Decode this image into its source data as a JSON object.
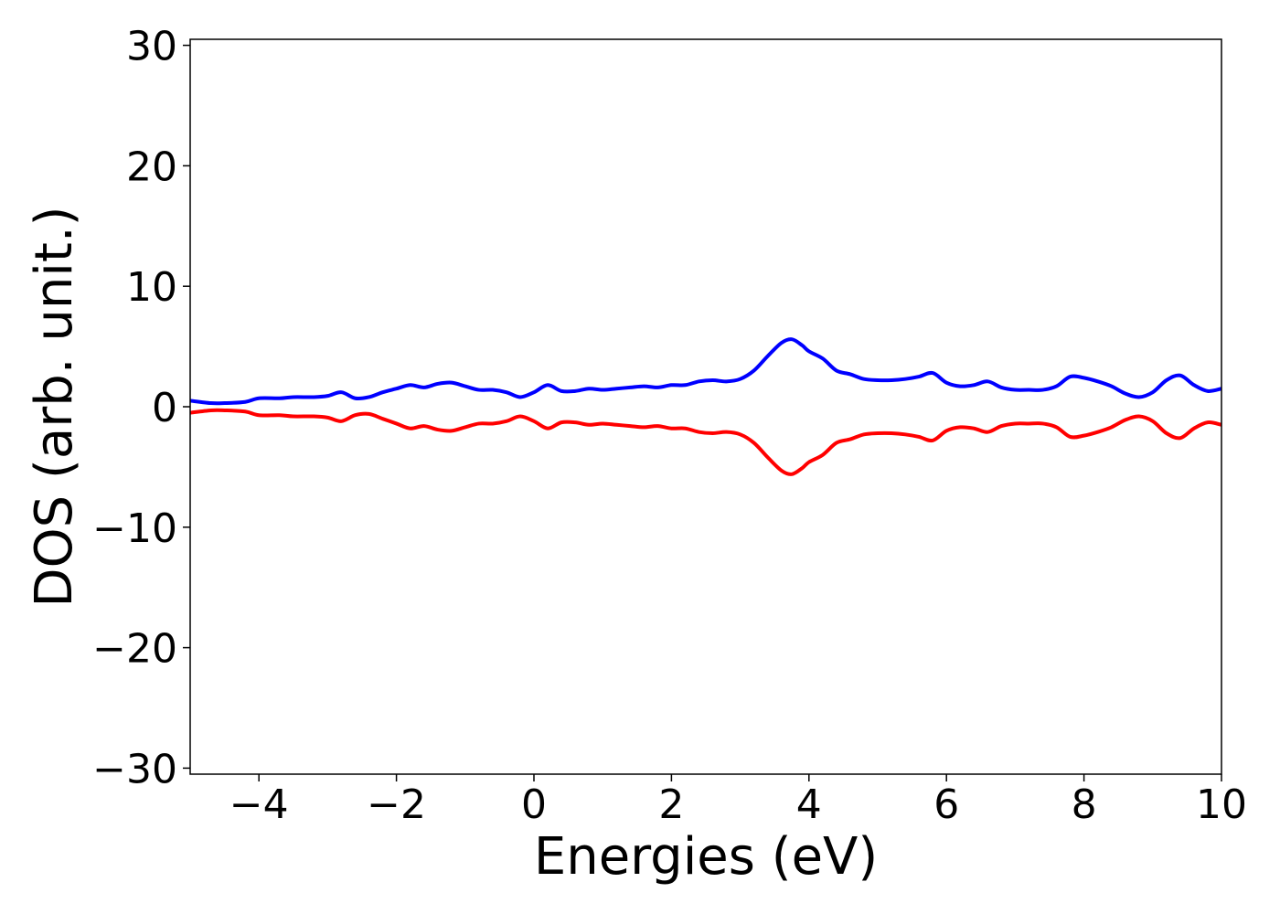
{
  "chart_data": {
    "type": "line",
    "title": "",
    "xlabel": "Energies (eV)",
    "ylabel": "DOS (arb. unit.)",
    "xlim": [
      -5,
      10
    ],
    "ylim": [
      -30.5,
      30.5
    ],
    "xticks": [
      -4,
      -2,
      0,
      2,
      4,
      6,
      8,
      10
    ],
    "xtick_labels": [
      "−4",
      "−2",
      "0",
      "2",
      "4",
      "6",
      "8",
      "10"
    ],
    "yticks": [
      -30,
      -20,
      -10,
      0,
      10,
      20,
      30
    ],
    "ytick_labels": [
      "−30",
      "−20",
      "−10",
      "0",
      "10",
      "20",
      "30"
    ],
    "grid": false,
    "series": [
      {
        "color": "#0000ff",
        "x": [
          -5.0,
          -4.7,
          -4.5,
          -4.2,
          -4.0,
          -3.7,
          -3.5,
          -3.2,
          -3.0,
          -2.8,
          -2.6,
          -2.4,
          -2.2,
          -2.0,
          -1.8,
          -1.6,
          -1.4,
          -1.2,
          -1.0,
          -0.8,
          -0.6,
          -0.4,
          -0.2,
          0.0,
          0.2,
          0.4,
          0.6,
          0.8,
          1.0,
          1.2,
          1.4,
          1.6,
          1.8,
          2.0,
          2.2,
          2.4,
          2.6,
          2.8,
          3.0,
          3.2,
          3.4,
          3.6,
          3.75,
          3.9,
          4.0,
          4.2,
          4.4,
          4.6,
          4.8,
          5.0,
          5.2,
          5.4,
          5.6,
          5.8,
          6.0,
          6.2,
          6.4,
          6.6,
          6.8,
          7.0,
          7.2,
          7.4,
          7.6,
          7.8,
          8.0,
          8.2,
          8.4,
          8.6,
          8.8,
          9.0,
          9.2,
          9.4,
          9.6,
          9.8,
          10.0
        ],
        "y": [
          0.5,
          0.3,
          0.3,
          0.4,
          0.7,
          0.7,
          0.8,
          0.8,
          0.9,
          1.2,
          0.7,
          0.8,
          1.2,
          1.5,
          1.8,
          1.6,
          1.9,
          2.0,
          1.7,
          1.4,
          1.4,
          1.2,
          0.8,
          1.2,
          1.8,
          1.3,
          1.3,
          1.5,
          1.4,
          1.5,
          1.6,
          1.7,
          1.6,
          1.8,
          1.8,
          2.1,
          2.2,
          2.1,
          2.3,
          3.0,
          4.2,
          5.3,
          5.6,
          5.1,
          4.6,
          4.0,
          3.0,
          2.7,
          2.3,
          2.2,
          2.2,
          2.3,
          2.5,
          2.8,
          2.0,
          1.7,
          1.8,
          2.1,
          1.6,
          1.4,
          1.4,
          1.4,
          1.7,
          2.5,
          2.4,
          2.1,
          1.7,
          1.1,
          0.8,
          1.2,
          2.2,
          2.6,
          1.8,
          1.3,
          1.5
        ]
      },
      {
        "color": "#ff0000",
        "x": [
          -5.0,
          -4.7,
          -4.5,
          -4.2,
          -4.0,
          -3.7,
          -3.5,
          -3.2,
          -3.0,
          -2.8,
          -2.6,
          -2.4,
          -2.2,
          -2.0,
          -1.8,
          -1.6,
          -1.4,
          -1.2,
          -1.0,
          -0.8,
          -0.6,
          -0.4,
          -0.2,
          0.0,
          0.2,
          0.4,
          0.6,
          0.8,
          1.0,
          1.2,
          1.4,
          1.6,
          1.8,
          2.0,
          2.2,
          2.4,
          2.6,
          2.8,
          3.0,
          3.2,
          3.4,
          3.6,
          3.75,
          3.9,
          4.0,
          4.2,
          4.4,
          4.6,
          4.8,
          5.0,
          5.2,
          5.4,
          5.6,
          5.8,
          6.0,
          6.2,
          6.4,
          6.6,
          6.8,
          7.0,
          7.2,
          7.4,
          7.6,
          7.8,
          8.0,
          8.2,
          8.4,
          8.6,
          8.8,
          9.0,
          9.2,
          9.4,
          9.6,
          9.8,
          10.0
        ],
        "y": [
          -0.5,
          -0.3,
          -0.3,
          -0.4,
          -0.7,
          -0.7,
          -0.8,
          -0.8,
          -0.9,
          -1.2,
          -0.7,
          -0.6,
          -1.0,
          -1.4,
          -1.8,
          -1.6,
          -1.9,
          -2.0,
          -1.7,
          -1.4,
          -1.4,
          -1.2,
          -0.8,
          -1.2,
          -1.8,
          -1.3,
          -1.3,
          -1.5,
          -1.4,
          -1.5,
          -1.6,
          -1.7,
          -1.6,
          -1.8,
          -1.8,
          -2.1,
          -2.2,
          -2.1,
          -2.3,
          -3.0,
          -4.2,
          -5.3,
          -5.6,
          -5.1,
          -4.6,
          -4.0,
          -3.0,
          -2.7,
          -2.3,
          -2.2,
          -2.2,
          -2.3,
          -2.5,
          -2.8,
          -2.0,
          -1.7,
          -1.8,
          -2.1,
          -1.6,
          -1.4,
          -1.4,
          -1.4,
          -1.7,
          -2.5,
          -2.4,
          -2.1,
          -1.7,
          -1.1,
          -0.8,
          -1.2,
          -2.2,
          -2.6,
          -1.8,
          -1.3,
          -1.5
        ]
      }
    ]
  }
}
